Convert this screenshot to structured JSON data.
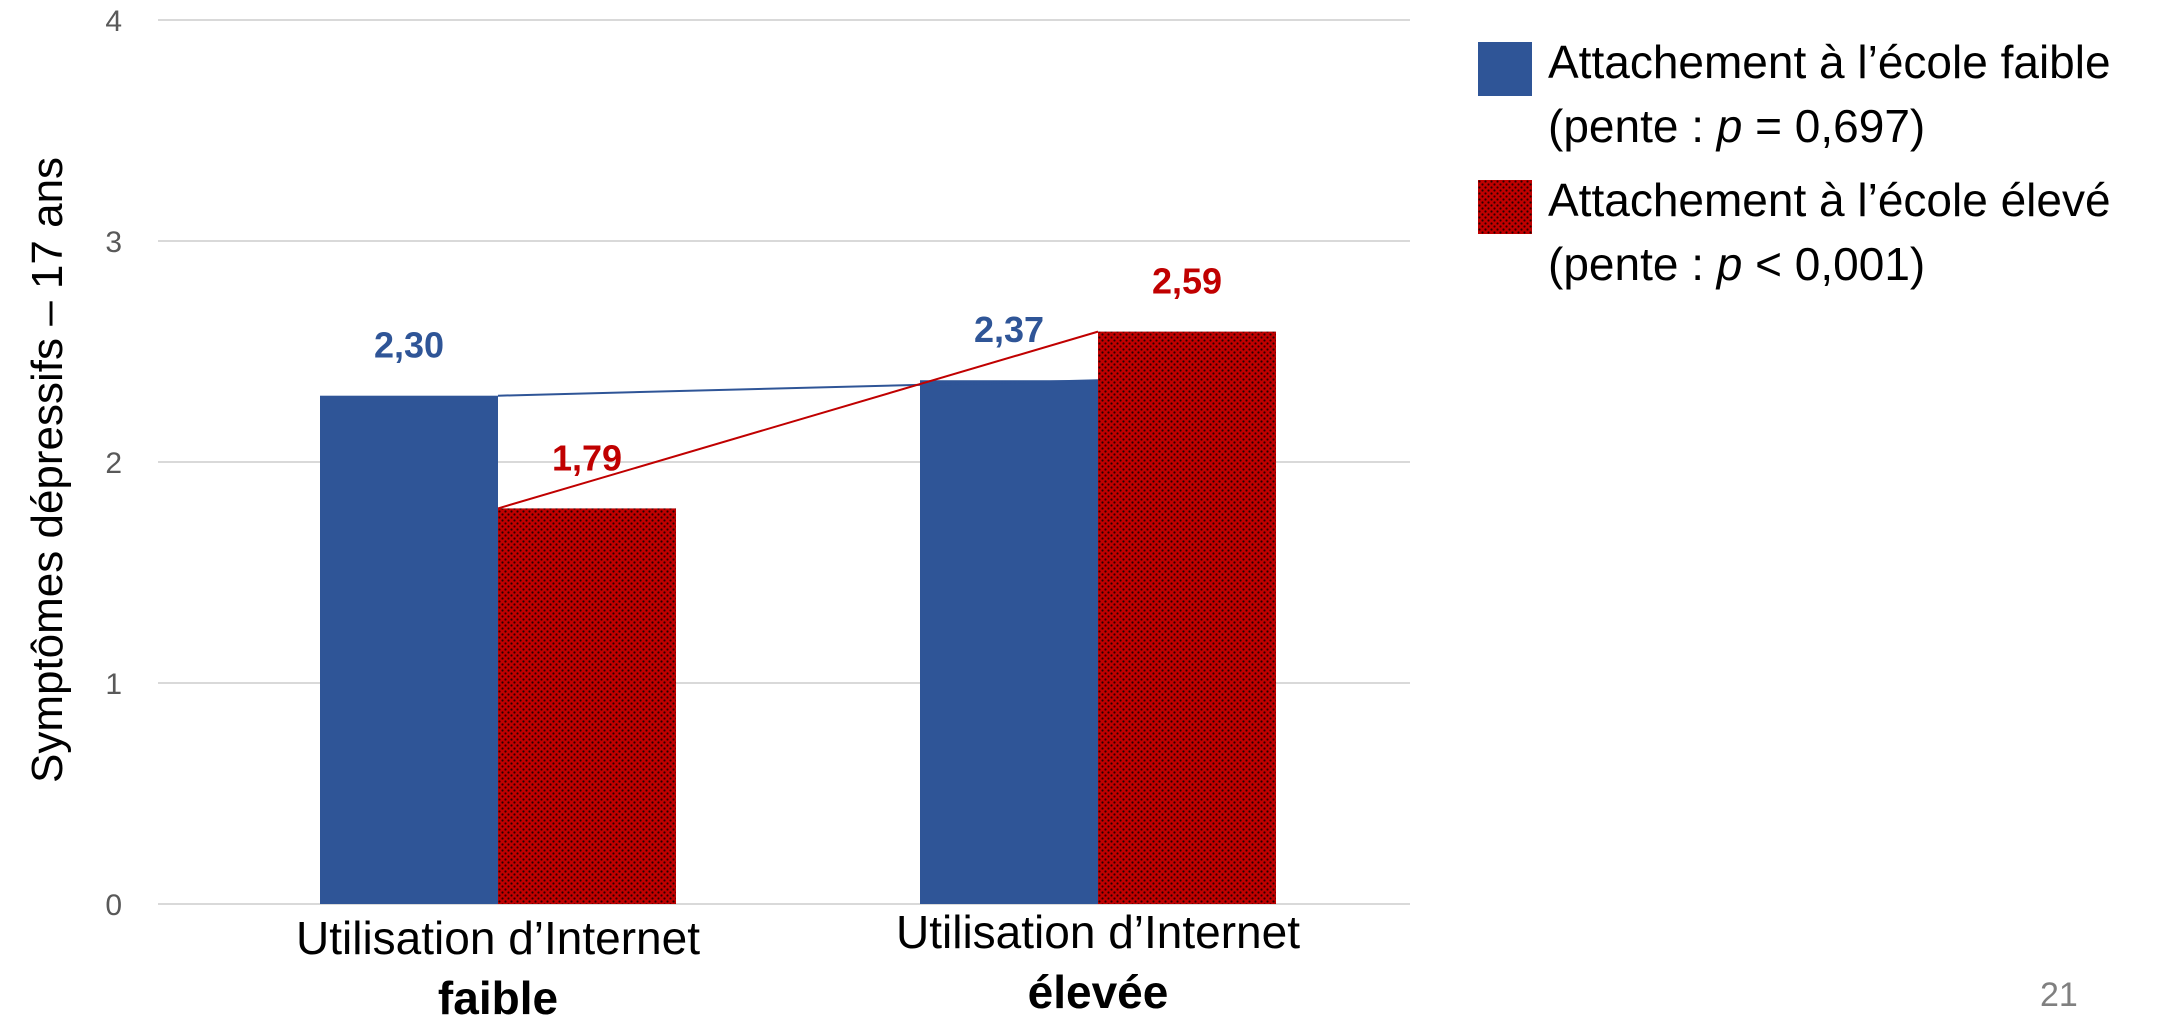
{
  "chart_data": {
    "type": "bar",
    "ylabel": "Symptômes dépressifs – 17 ans",
    "ylim": [
      0,
      4
    ],
    "yticks": [
      "0",
      "1",
      "2",
      "3",
      "4"
    ],
    "grid": true,
    "legend_position": "top-right",
    "categories": [
      {
        "line1": "Utilisation d’Internet",
        "line2": "faible"
      },
      {
        "line1": "Utilisation d’Internet",
        "line2": "élevée"
      }
    ],
    "series": [
      {
        "name_line1": "Attachement à l’école faible",
        "name_line2_prefix": "(pente : ",
        "name_line2_var": "p",
        "name_line2_suffix": " = 0,697)",
        "color": "#2F5597",
        "pattern": "solid",
        "values": [
          2.3,
          2.37
        ],
        "labels": [
          "2,30",
          "2,37"
        ]
      },
      {
        "name_line1": "Attachement à l’école élevé",
        "name_line2_prefix": "(pente : ",
        "name_line2_var": "p",
        "name_line2_suffix": " < 0,001)",
        "color": "#C00000",
        "pattern": "dotted",
        "values": [
          1.79,
          2.59
        ],
        "labels": [
          "1,79",
          "2,59"
        ]
      }
    ]
  },
  "page_number": "21"
}
